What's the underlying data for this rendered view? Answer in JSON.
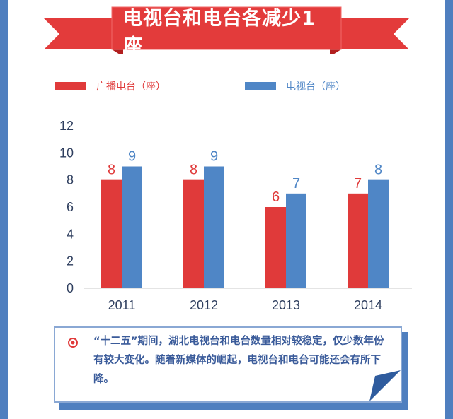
{
  "title": "电视台和电台各减少1座",
  "legend": {
    "series_a": "广播电台（座）",
    "series_b": "电视台（座）"
  },
  "colors": {
    "series_a": "#e03a3a",
    "series_b": "#4f86c6",
    "frame": "#4f7fbf",
    "ribbon": "#e33b3b",
    "ribbon_dark": "#b21f1f",
    "note_text": "#3a5b9a"
  },
  "chart_data": {
    "type": "bar",
    "categories": [
      "2011",
      "2012",
      "2013",
      "2014"
    ],
    "series": [
      {
        "name": "广播电台（座）",
        "values": [
          8,
          8,
          6,
          7
        ]
      },
      {
        "name": "电视台（座）",
        "values": [
          9,
          9,
          7,
          8
        ]
      }
    ],
    "ylim": [
      0,
      12
    ],
    "yticks": [
      "0",
      "2",
      "4",
      "6",
      "8",
      "10",
      "12"
    ],
    "grid": false,
    "legend_position": "top"
  },
  "note": {
    "text": "“十二五”期间，湖北电视台和电台数量相对较稳定，仅少数年份有较大变化。随着新媒体的崛起，电视台和电台可能还会有所下降。"
  }
}
